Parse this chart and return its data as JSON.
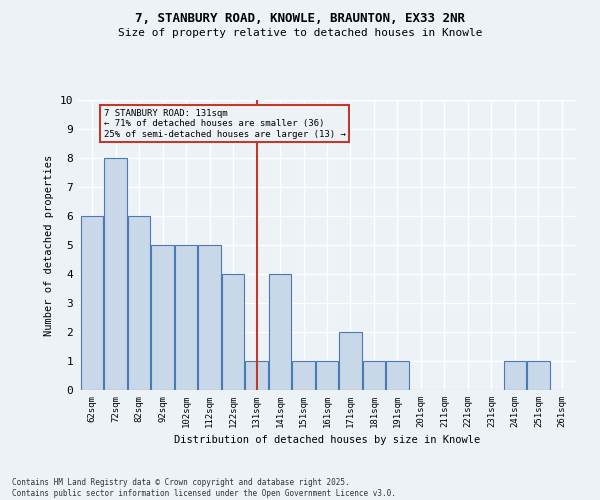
{
  "title1": "7, STANBURY ROAD, KNOWLE, BRAUNTON, EX33 2NR",
  "title2": "Size of property relative to detached houses in Knowle",
  "xlabel": "Distribution of detached houses by size in Knowle",
  "ylabel": "Number of detached properties",
  "bin_labels": [
    "62sqm",
    "72sqm",
    "82sqm",
    "92sqm",
    "102sqm",
    "112sqm",
    "122sqm",
    "131sqm",
    "141sqm",
    "151sqm",
    "161sqm",
    "171sqm",
    "181sqm",
    "191sqm",
    "201sqm",
    "211sqm",
    "221sqm",
    "231sqm",
    "241sqm",
    "251sqm",
    "261sqm"
  ],
  "counts": [
    6,
    8,
    6,
    5,
    5,
    5,
    4,
    1,
    4,
    1,
    1,
    2,
    1,
    1,
    0,
    0,
    0,
    0,
    1,
    1,
    0
  ],
  "subject_bin_index": 7,
  "subject_sqm": 131,
  "annotation_line1": "7 STANBURY ROAD: 131sqm",
  "annotation_line2": "← 71% of detached houses are smaller (36)",
  "annotation_line3": "25% of semi-detached houses are larger (13) →",
  "bar_color": "#c8d8e8",
  "bar_edge_color": "#4a7ab5",
  "subject_line_color": "#c0392b",
  "annotation_box_color": "#c0392b",
  "background_color": "#edf2f7",
  "grid_color": "#ffffff",
  "footer1": "Contains HM Land Registry data © Crown copyright and database right 2025.",
  "footer2": "Contains public sector information licensed under the Open Government Licence v3.0.",
  "ylim": [
    0,
    10
  ],
  "yticks": [
    0,
    1,
    2,
    3,
    4,
    5,
    6,
    7,
    8,
    9,
    10
  ]
}
